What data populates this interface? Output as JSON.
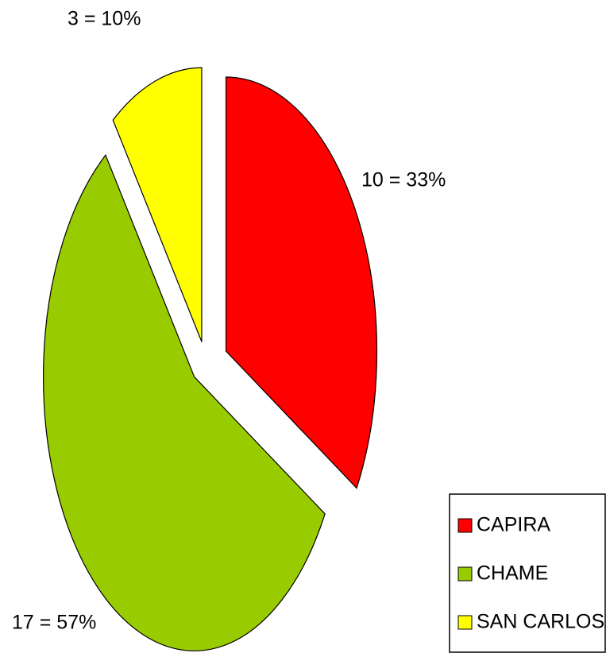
{
  "chart_data": {
    "type": "pie",
    "categories": [
      "CAPIRA",
      "CHAME",
      "SAN CARLOS"
    ],
    "values": [
      10,
      17,
      3
    ],
    "value_labels": [
      "10 = 33%",
      "17 = 57%",
      "3 = 10%"
    ],
    "colors": [
      "#ff0000",
      "#99cc00",
      "#ffff00"
    ],
    "legend": "bottom-right"
  }
}
